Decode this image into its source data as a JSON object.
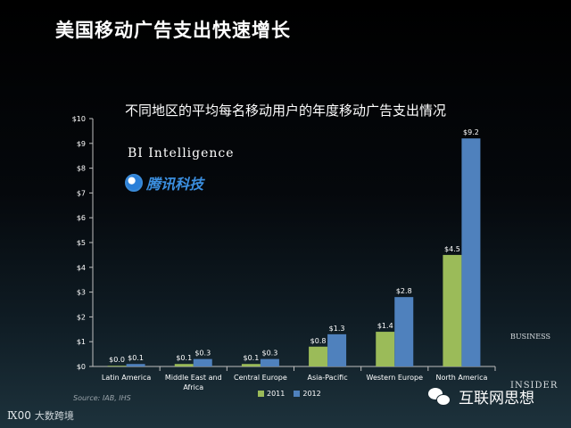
{
  "slide_title": "美国移动广告支出快速增长",
  "chart_data": {
    "type": "bar",
    "title": "不同地区的平均每名移动用户的年度移动广告支出情况",
    "categories": [
      "Latin America",
      "Middle East and Africa",
      "Central Europe",
      "Asia-Pacific",
      "Western Europe",
      "North America"
    ],
    "series": [
      {
        "name": "2011",
        "values": [
          0.0,
          0.1,
          0.1,
          0.8,
          1.4,
          4.5
        ],
        "labels": [
          "$0.0",
          "$0.1",
          "$0.1",
          "$0.8",
          "$1.4",
          "$4.5"
        ],
        "color": "#9bbb59"
      },
      {
        "name": "2012",
        "values": [
          0.1,
          0.3,
          0.3,
          1.3,
          2.8,
          9.2
        ],
        "labels": [
          "$0.1",
          "$0.3",
          "$0.3",
          "$1.3",
          "$2.8",
          "$9.2"
        ],
        "color": "#4f81bd"
      }
    ],
    "ylim": [
      0,
      10
    ],
    "yticks": [
      0,
      1,
      2,
      3,
      4,
      5,
      6,
      7,
      8,
      9,
      10
    ],
    "ytick_labels": [
      "$0",
      "$1",
      "$2",
      "$3",
      "$4",
      "$5",
      "$6",
      "$7",
      "$8",
      "$9",
      "$10"
    ],
    "legend_position": "bottom",
    "grid": false
  },
  "source": "Source: IAB, IHS",
  "logos": {
    "bi_intelligence": "BI Intelligence",
    "tencent_tech": "腾讯科技",
    "business_insider_top": "BUSINESS",
    "business_insider_bottom": "INSIDER",
    "wechat_account": "互联网思想",
    "footer_brand": "大数跨境",
    "footer_mark": "Ⅸ𝟢𝟢"
  },
  "colors": {
    "series_2011": "#9bbb59",
    "series_2012": "#4f81bd",
    "axis": "#bfbfbf"
  }
}
